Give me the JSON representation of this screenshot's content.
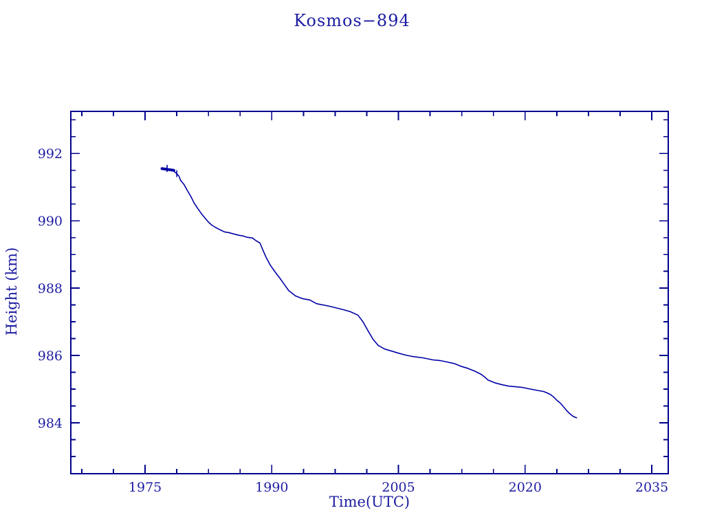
{
  "title": "Kosmos−894",
  "colors": {
    "background": "#ffffff",
    "ink": "#1c1ca2",
    "frame": "#00008b",
    "curve": "#0000a6"
  },
  "chart_data": {
    "type": "line",
    "title": "Kosmos−894",
    "xlabel": "Time(UTC)",
    "ylabel": "Height (km)",
    "xlim": [
      1966.2,
      2036.95
    ],
    "ylim": [
      982.49,
      993.25
    ],
    "grid": false,
    "legend_position": "none",
    "x_major_ticks": [
      1975,
      1990,
      2005,
      2020,
      2035
    ],
    "x_minor_ticks": [
      1967.5,
      1971.25,
      1978.75,
      1982.5,
      1986.25,
      1993.75,
      1997.5,
      2001.25,
      2008.75,
      2012.5,
      2016.25,
      2023.75,
      2027.5,
      2031.25
    ],
    "y_major_ticks": [
      984,
      986,
      988,
      990,
      992
    ],
    "y_minor_ticks": [
      983,
      983.5,
      984.5,
      985,
      985.5,
      986.5,
      987,
      987.5,
      988.5,
      989,
      989.5,
      990.5,
      991,
      991.5,
      992.5,
      993
    ],
    "series": [
      {
        "name": "orbital-height-km",
        "points": [
          [
            1977.0,
            991.55
          ],
          [
            1977.3,
            991.53
          ],
          [
            1977.8,
            991.52
          ],
          [
            1978.3,
            991.49
          ],
          [
            1978.7,
            991.41
          ],
          [
            1979.0,
            991.33
          ],
          [
            1979.2,
            991.2
          ],
          [
            1979.6,
            991.08
          ],
          [
            1980.0,
            990.9
          ],
          [
            1980.4,
            990.73
          ],
          [
            1980.8,
            990.53
          ],
          [
            1981.2,
            990.38
          ],
          [
            1981.7,
            990.2
          ],
          [
            1982.1,
            990.08
          ],
          [
            1982.5,
            989.96
          ],
          [
            1982.9,
            989.87
          ],
          [
            1983.3,
            989.81
          ],
          [
            1983.9,
            989.73
          ],
          [
            1984.4,
            989.67
          ],
          [
            1984.9,
            989.65
          ],
          [
            1985.5,
            989.61
          ],
          [
            1986.1,
            989.57
          ],
          [
            1986.6,
            989.55
          ],
          [
            1987.1,
            989.51
          ],
          [
            1987.7,
            989.49
          ],
          [
            1988.2,
            989.4
          ],
          [
            1988.6,
            989.34
          ],
          [
            1988.9,
            989.16
          ],
          [
            1989.3,
            988.93
          ],
          [
            1989.8,
            988.69
          ],
          [
            1990.4,
            988.48
          ],
          [
            1991.0,
            988.28
          ],
          [
            1991.4,
            988.14
          ],
          [
            1992.0,
            987.93
          ],
          [
            1992.8,
            987.77
          ],
          [
            1993.6,
            987.69
          ],
          [
            1994.5,
            987.65
          ],
          [
            1995.3,
            987.54
          ],
          [
            1996.9,
            987.46
          ],
          [
            1998.5,
            987.36
          ],
          [
            1999.3,
            987.3
          ],
          [
            2000.2,
            987.2
          ],
          [
            2000.8,
            987.0
          ],
          [
            2001.4,
            986.73
          ],
          [
            2002.0,
            986.48
          ],
          [
            2002.6,
            986.3
          ],
          [
            2003.4,
            986.19
          ],
          [
            2004.2,
            986.13
          ],
          [
            2005.0,
            986.07
          ],
          [
            2005.9,
            986.01
          ],
          [
            2006.7,
            985.97
          ],
          [
            2007.9,
            985.93
          ],
          [
            2009.1,
            985.87
          ],
          [
            2009.9,
            985.85
          ],
          [
            2010.7,
            985.81
          ],
          [
            2011.6,
            985.76
          ],
          [
            2012.4,
            985.68
          ],
          [
            2013.2,
            985.62
          ],
          [
            2014.0,
            985.54
          ],
          [
            2014.8,
            985.44
          ],
          [
            2015.2,
            985.36
          ],
          [
            2015.6,
            985.27
          ],
          [
            2016.4,
            985.19
          ],
          [
            2017.3,
            985.13
          ],
          [
            2018.1,
            985.09
          ],
          [
            2018.9,
            985.07
          ],
          [
            2019.7,
            985.05
          ],
          [
            2020.5,
            985.01
          ],
          [
            2021.3,
            984.97
          ],
          [
            2022.2,
            984.93
          ],
          [
            2022.6,
            984.89
          ],
          [
            2023.0,
            984.84
          ],
          [
            2023.4,
            984.76
          ],
          [
            2023.8,
            984.66
          ],
          [
            2024.2,
            984.58
          ],
          [
            2024.6,
            984.46
          ],
          [
            2024.9,
            984.37
          ],
          [
            2025.2,
            984.29
          ],
          [
            2025.5,
            984.23
          ],
          [
            2025.7,
            984.19
          ],
          [
            2025.9,
            984.17
          ],
          [
            2026.1,
            984.15
          ]
        ]
      }
    ],
    "error_spikes": [
      {
        "x": 1977.6,
        "y_low": 991.45,
        "y_high": 991.66
      },
      {
        "x": 1978.75,
        "y_low": 991.3,
        "y_high": 991.5
      }
    ],
    "dense_start_segment": {
      "x_start": 1977.0,
      "x_end": 1978.4,
      "y_start": 991.55,
      "y_end": 991.5
    }
  }
}
